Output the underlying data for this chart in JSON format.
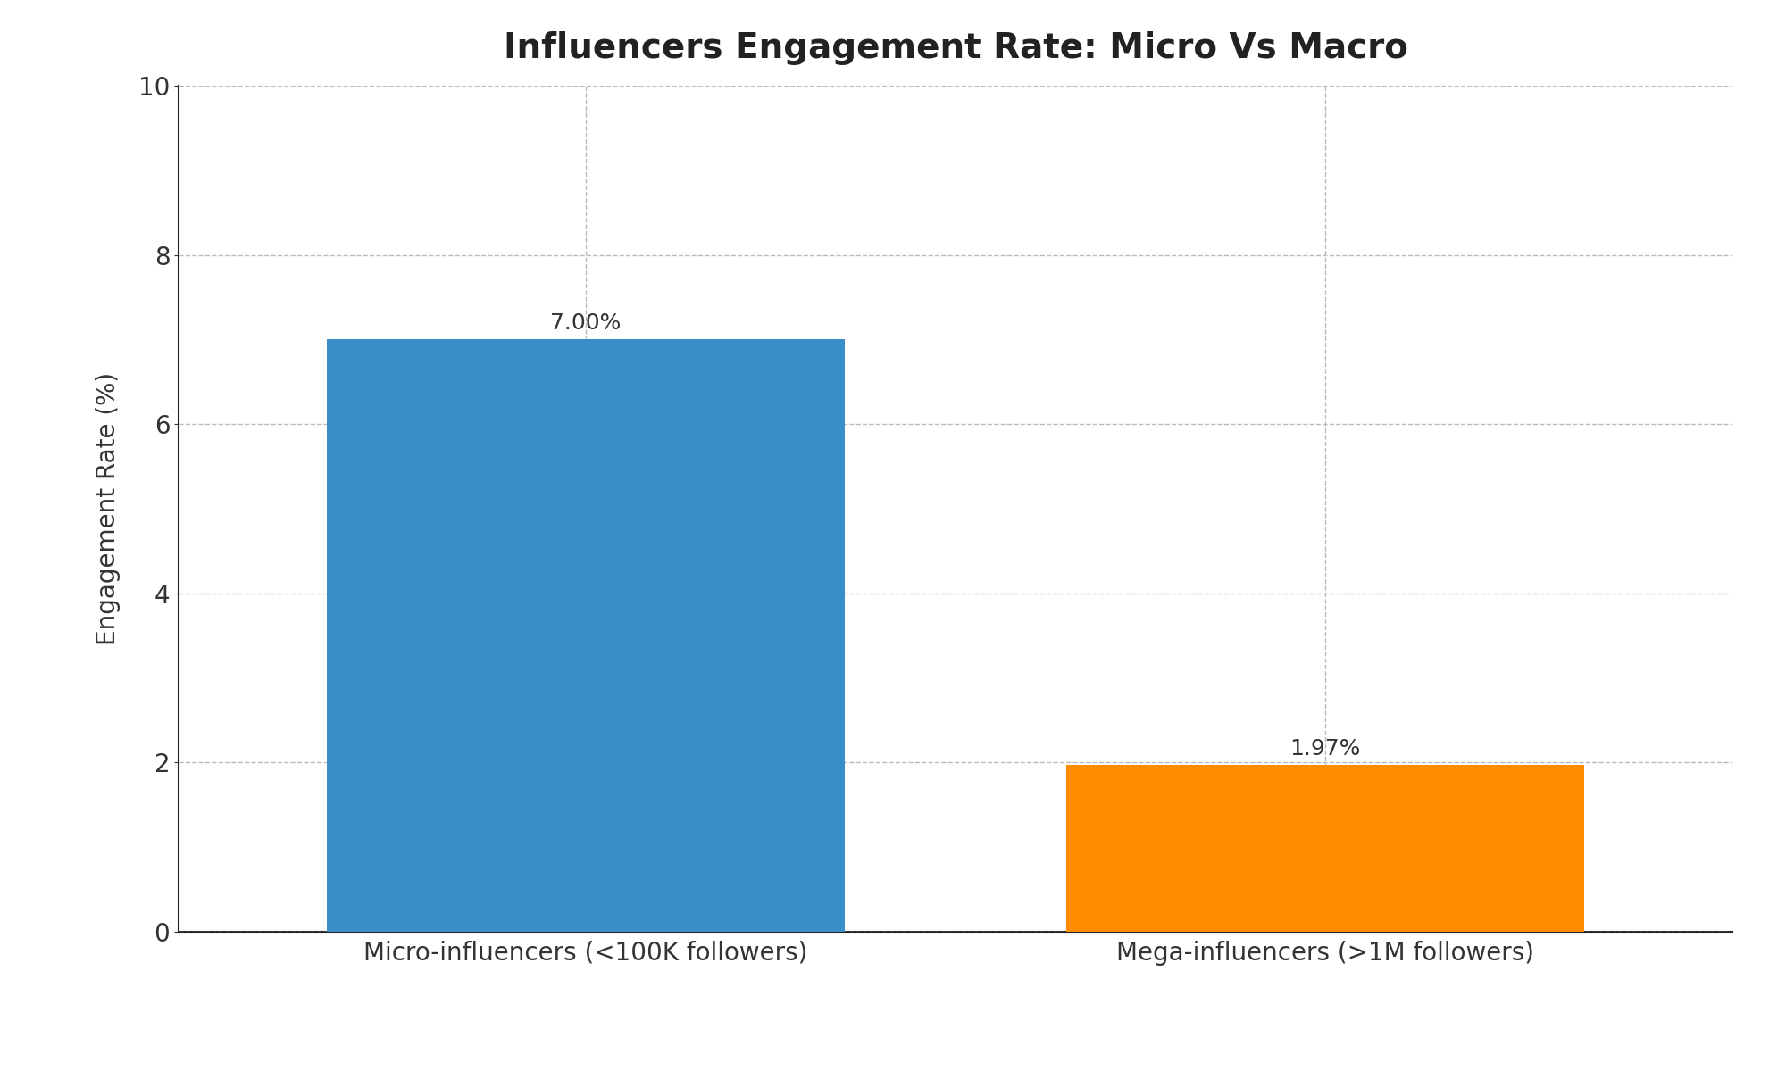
{
  "title": "Influencers Engagement Rate: Micro Vs Macro",
  "categories": [
    "Micro-influencers (<100K followers)",
    "Mega-influencers (>1M followers)"
  ],
  "values": [
    7.0,
    1.97
  ],
  "bar_colors": [
    "#3a8ec7",
    "#ff8c00"
  ],
  "bar_labels": [
    "7.00%",
    "1.97%"
  ],
  "ylabel": "Engagement Rate (%)",
  "ylim": [
    0,
    10
  ],
  "yticks": [
    0,
    2,
    4,
    6,
    8,
    10
  ],
  "title_fontsize": 28,
  "label_fontsize": 20,
  "tick_fontsize": 20,
  "annotation_fontsize": 18,
  "background_color": "#ffffff",
  "grid_color": "#bbbbbb",
  "bar_width": 0.7
}
